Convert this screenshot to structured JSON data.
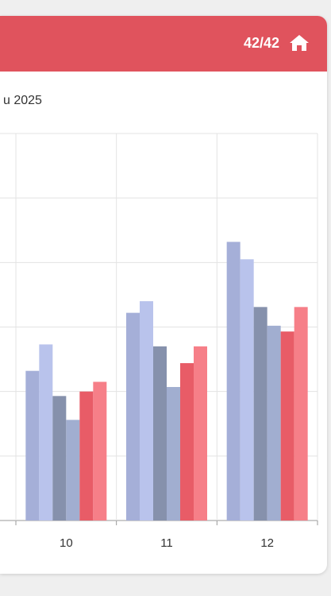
{
  "header": {
    "counter": "42/42"
  },
  "subtitle": "u 2025",
  "chart_data": {
    "type": "bar",
    "categories": [
      "10",
      "11",
      "12"
    ],
    "series": [
      {
        "color": "#a5afd8",
        "values": [
          2.32,
          3.22,
          4.32
        ]
      },
      {
        "color": "#b9c3ec",
        "values": [
          2.73,
          3.4,
          4.05
        ]
      },
      {
        "color": "#8691ac",
        "values": [
          1.93,
          2.7,
          3.31
        ]
      },
      {
        "color": "#a1aed0",
        "values": [
          1.56,
          2.07,
          3.02
        ]
      },
      {
        "color": "#e85c67",
        "values": [
          2.0,
          2.44,
          2.93
        ]
      },
      {
        "color": "#f67f88",
        "values": [
          2.15,
          2.7,
          3.31
        ]
      }
    ],
    "ylim": [
      0,
      6
    ],
    "yticks": [
      0,
      1,
      2,
      3,
      4,
      5,
      6
    ],
    "grid": true
  }
}
